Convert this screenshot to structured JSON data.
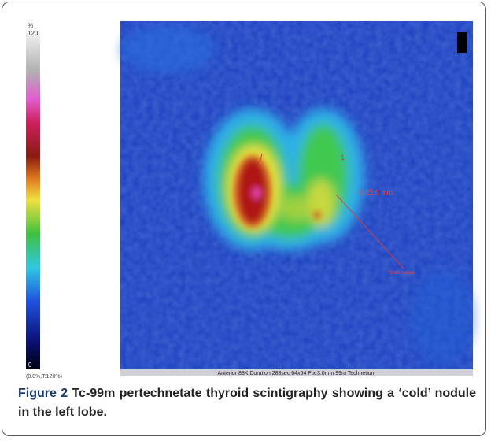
{
  "figure": {
    "scale": {
      "unit": "%",
      "max": "120",
      "min": "0",
      "range": "(0.0%,T:120%)"
    },
    "image": {
      "footer": "Anterior 88K Duration:288sec 64x64 Pix:3.0mm 99m Technetium",
      "marker": "1",
      "measurement": "L 25.6 mm.",
      "annotation": "*Cold nodule"
    },
    "caption": {
      "label": "Figure 2",
      "text": "Tc-99m pertechnetate thyroid scintigraphy showing a ‘cold’ nodule in the left lobe."
    }
  }
}
